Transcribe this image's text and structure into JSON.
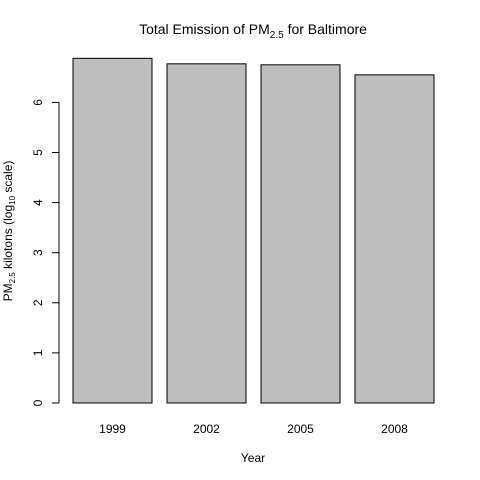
{
  "chart_data": {
    "type": "bar",
    "title": {
      "prefix": "Total Emission of PM",
      "subscript": "2.5",
      "suffix": " for Baltimore"
    },
    "xlabel": "Year",
    "ylabel": {
      "part1": "PM",
      "sub1": "2.5",
      "part2": " kilotons (log",
      "sub2": "10",
      "part3": " scale)"
    },
    "categories": [
      "1999",
      "2002",
      "2005",
      "2008"
    ],
    "values": [
      6.88,
      6.77,
      6.75,
      6.55
    ],
    "ylim": [
      0,
      7.1
    ],
    "yticks": [
      0,
      1,
      2,
      3,
      4,
      5,
      6
    ],
    "bar_color": "#bebebe",
    "grid": false,
    "legend": "none"
  }
}
